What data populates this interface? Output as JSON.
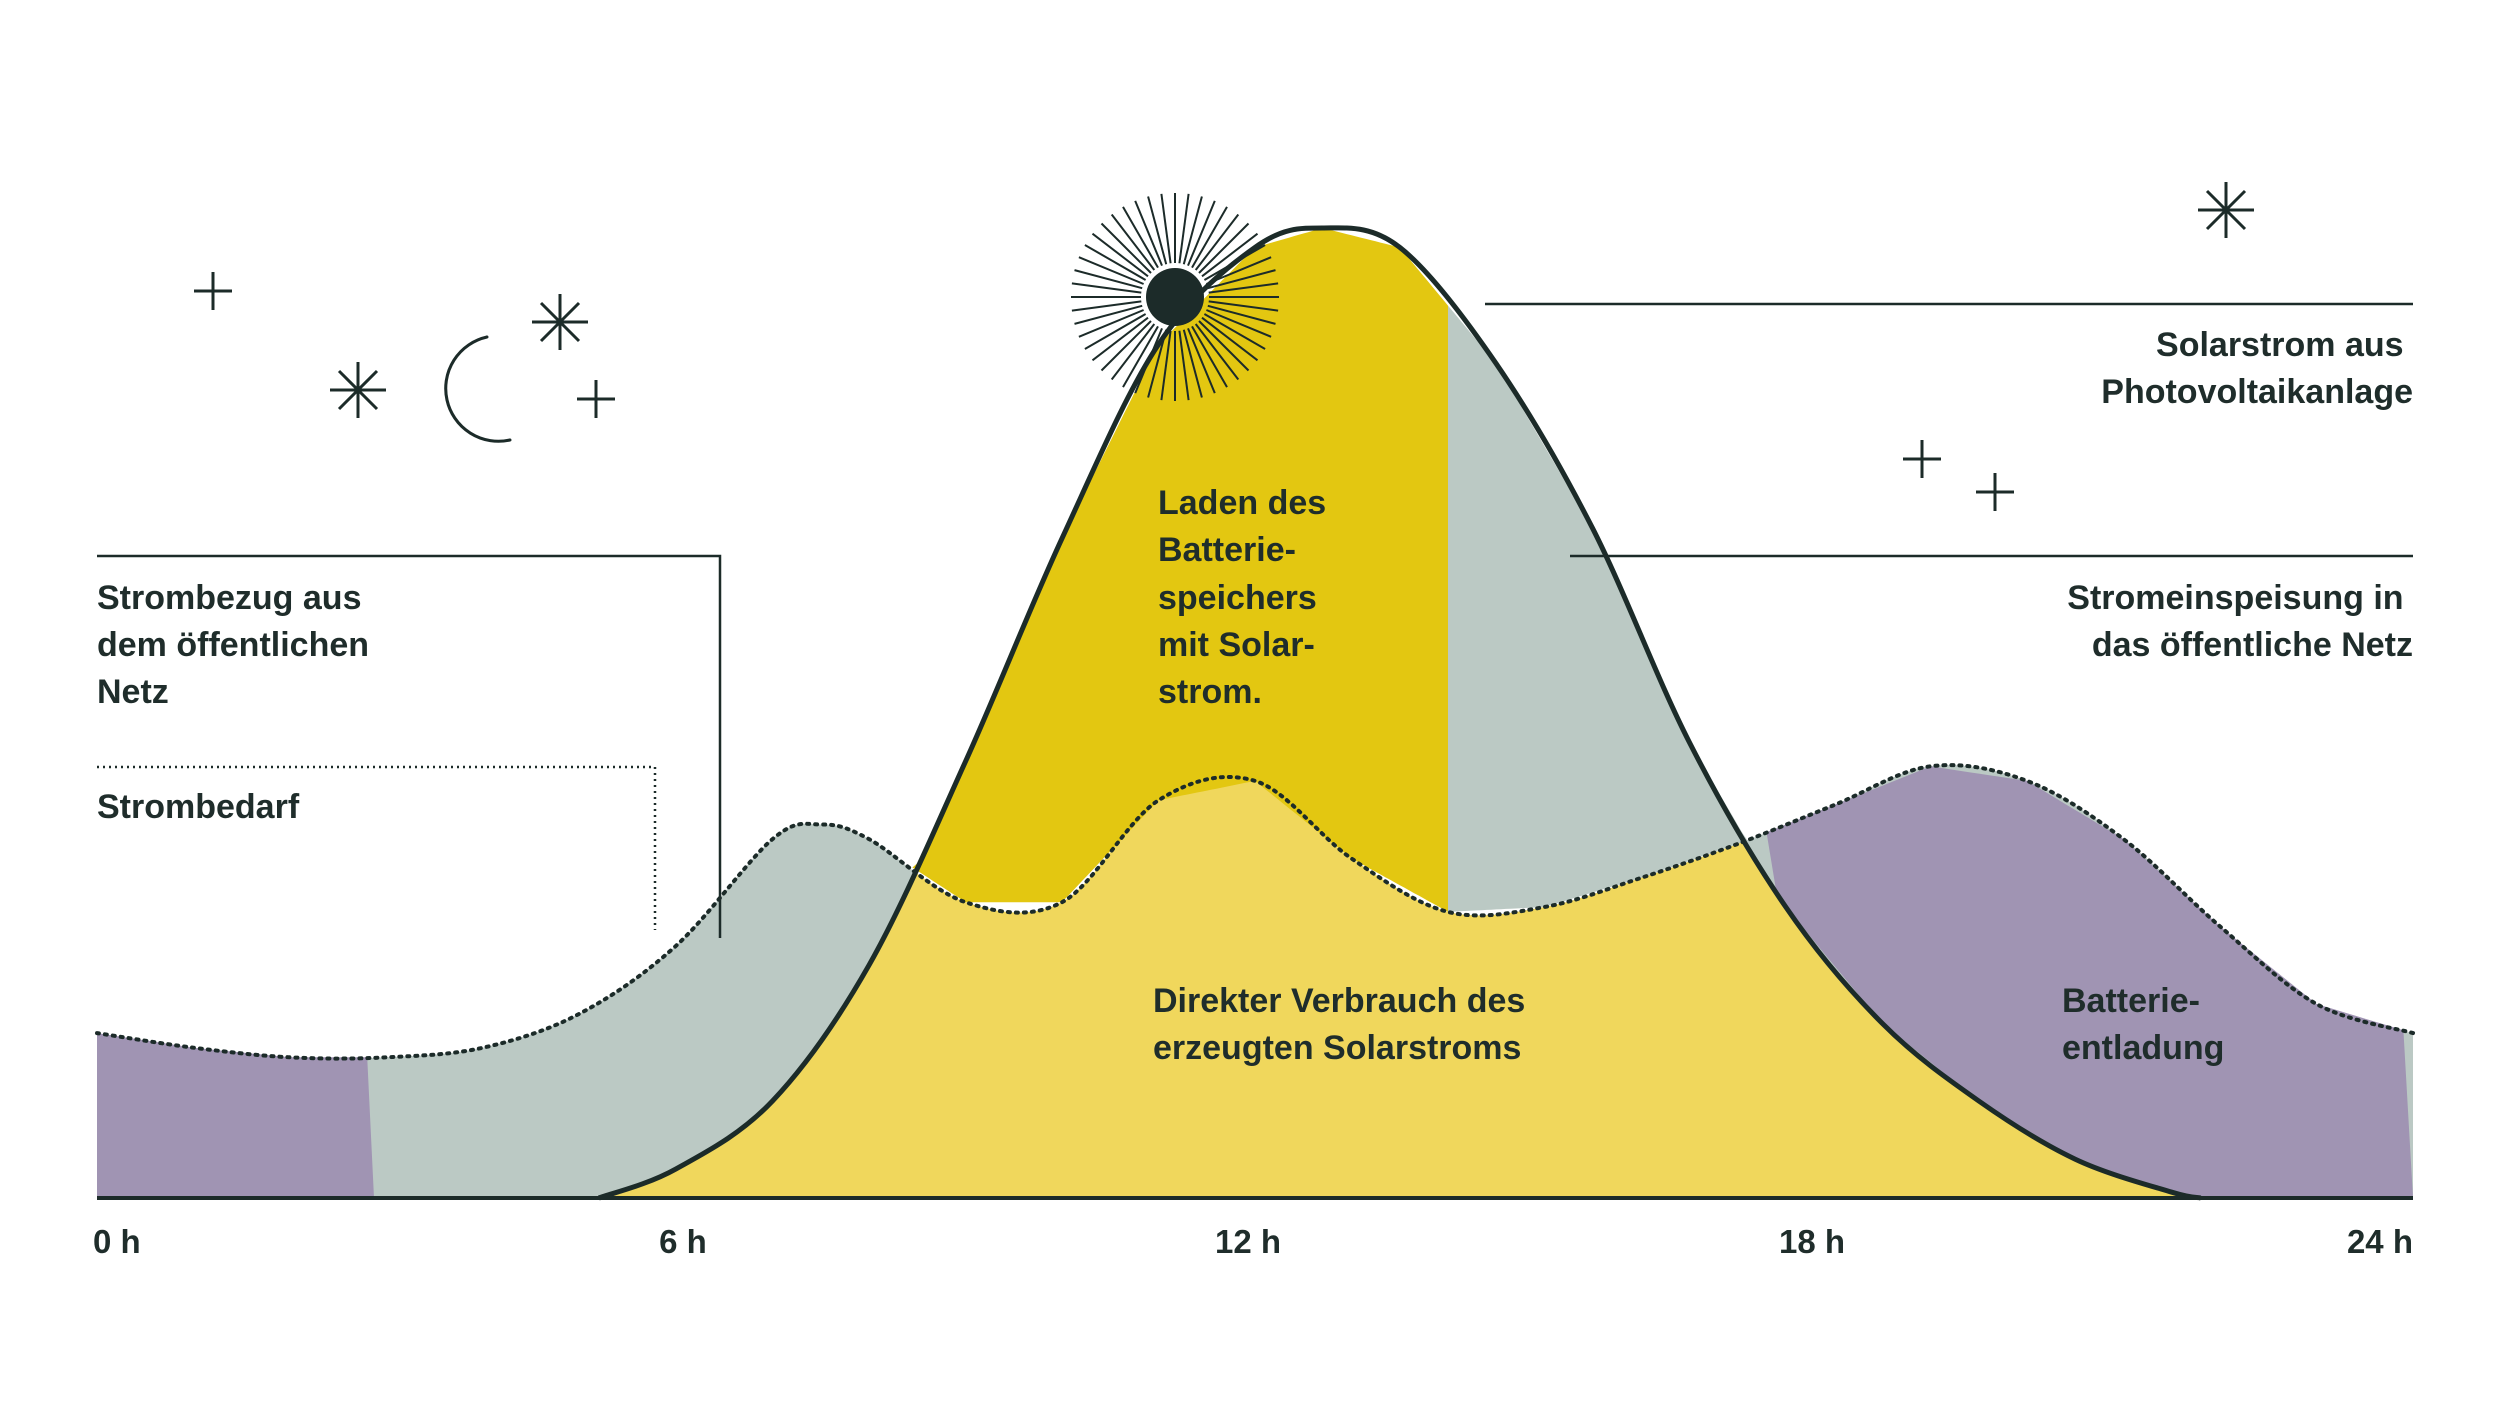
{
  "chart_data": {
    "type": "area",
    "title": "",
    "xlabel": "",
    "ylabel": "",
    "x_unit": "h",
    "xlim": [
      0,
      24
    ],
    "ylim": [
      0,
      1
    ],
    "x_ticks": [
      {
        "value": 0,
        "label": "0 h"
      },
      {
        "value": 6,
        "label": "6 h"
      },
      {
        "value": 12,
        "label": "12 h"
      },
      {
        "value": 18,
        "label": "18 h"
      },
      {
        "value": 24,
        "label": "24 h"
      }
    ],
    "series": [
      {
        "name": "Strombedarf",
        "style": "dotted",
        "x": [
          0,
          1,
          2,
          3,
          4,
          5,
          6,
          7,
          7.5,
          8,
          9,
          10,
          11,
          12,
          13,
          14,
          15,
          16,
          17,
          18,
          19,
          20,
          21,
          22,
          23,
          24
        ],
        "values": [
          0.17,
          0.155,
          0.145,
          0.145,
          0.155,
          0.19,
          0.26,
          0.37,
          0.385,
          0.37,
          0.305,
          0.305,
          0.41,
          0.43,
          0.35,
          0.295,
          0.3,
          0.33,
          0.365,
          0.405,
          0.445,
          0.43,
          0.37,
          0.28,
          0.2,
          0.17
        ]
      },
      {
        "name": "Solarstrom aus Photovoltaikanlage",
        "style": "solid",
        "x": [
          5.2,
          6,
          7,
          8,
          9,
          10,
          11,
          12,
          12.7,
          13.5,
          14.5,
          15.5,
          16.5,
          17.5,
          18.5,
          19.5,
          20.5,
          21.5,
          21.8
        ],
        "values": [
          0,
          0.03,
          0.1,
          0.24,
          0.45,
          0.68,
          0.88,
          0.98,
          1.0,
          0.98,
          0.86,
          0.69,
          0.47,
          0.3,
          0.18,
          0.1,
          0.04,
          0.006,
          0
        ]
      }
    ],
    "regions": [
      {
        "name": "Strombezug aus dem öffentlichen Netz",
        "color": "#bbc9c4"
      },
      {
        "name": "Laden des Batteriespeichers mit Solarstrom",
        "color": "#e3c711",
        "x_range": [
          8.3,
          14
        ]
      },
      {
        "name": "Stromeinspeisung in das öffentliche Netz",
        "color": "#bbc9c4",
        "x_range": [
          14,
          17.3
        ]
      },
      {
        "name": "Direkter Verbrauch des erzeugten Solarstroms",
        "color": "#f0d75c"
      },
      {
        "name": "Batterieentladung",
        "color": "#a094b3"
      }
    ],
    "annotations": [
      {
        "id": "netzbezug",
        "lines": [
          "Strombezug aus",
          "dem öffentlichen",
          "Netz"
        ]
      },
      {
        "id": "bedarf",
        "lines": [
          "Strombedarf"
        ]
      },
      {
        "id": "laden",
        "lines": [
          "Laden des",
          "Batterie-",
          "speichers",
          "mit Solar-",
          "strom."
        ]
      },
      {
        "id": "direkt",
        "lines": [
          "Direkter Verbrauch des",
          "erzeugten Solarstroms"
        ]
      },
      {
        "id": "solar",
        "lines": [
          "Solarstrom aus",
          "Photovoltaikanlage"
        ]
      },
      {
        "id": "einspeisung",
        "lines": [
          "Stromeinspeisung in",
          "das öffentliche Netz"
        ]
      },
      {
        "id": "entladung",
        "lines": [
          "Batterie-",
          "entladung"
        ]
      }
    ],
    "colors": {
      "ink": "#1c2b29",
      "grid_draw": "#bbc9c4",
      "battery_charge": "#e3c711",
      "direct_use": "#f0d75c",
      "battery_discharge": "#a094b3"
    },
    "icons": [
      "moon-icon",
      "sun-icon",
      "star-icon"
    ]
  }
}
